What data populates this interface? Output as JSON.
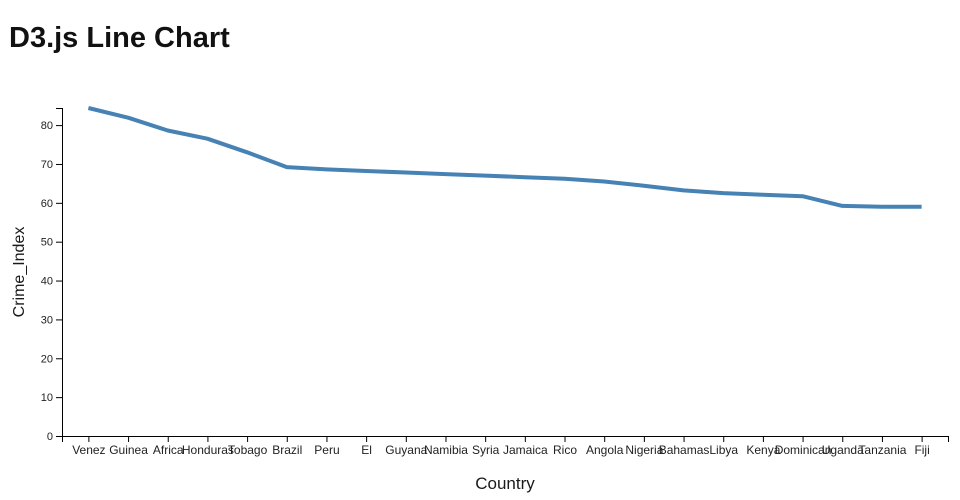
{
  "page_title": "D3.js Line Chart",
  "chart_data": {
    "type": "line",
    "title": "D3.js Line Chart",
    "xlabel": "Country",
    "ylabel": "Crime_Index",
    "categories": [
      "Venez",
      "Guinea",
      "Africa",
      "Honduras",
      "Tobago",
      "Brazil",
      "Peru",
      "El",
      "Guyana",
      "Namibia",
      "Syria",
      "Jamaica",
      "Rico",
      "Angola",
      "Nigeria",
      "Bahamas",
      "Libya",
      "Kenya",
      "Dominican",
      "Uganda",
      "Tanzania",
      "Fiji"
    ],
    "series": [
      {
        "name": "Crime_Index",
        "values": [
          84.4,
          81.9,
          78.6,
          76.5,
          73.0,
          69.2,
          68.6,
          68.2,
          67.8,
          67.4,
          67.0,
          66.6,
          66.2,
          65.5,
          64.4,
          63.2,
          62.5,
          62.1,
          61.7,
          59.2,
          59.0,
          59.0
        ]
      }
    ],
    "ylim": [
      0,
      84.4
    ],
    "y_ticks": [
      0,
      10,
      20,
      30,
      40,
      50,
      60,
      70,
      80
    ],
    "grid": false,
    "legend": false,
    "line_color": "#4682b4",
    "line_width": 4,
    "axis_color": "#000000",
    "text_color": "#222222"
  }
}
